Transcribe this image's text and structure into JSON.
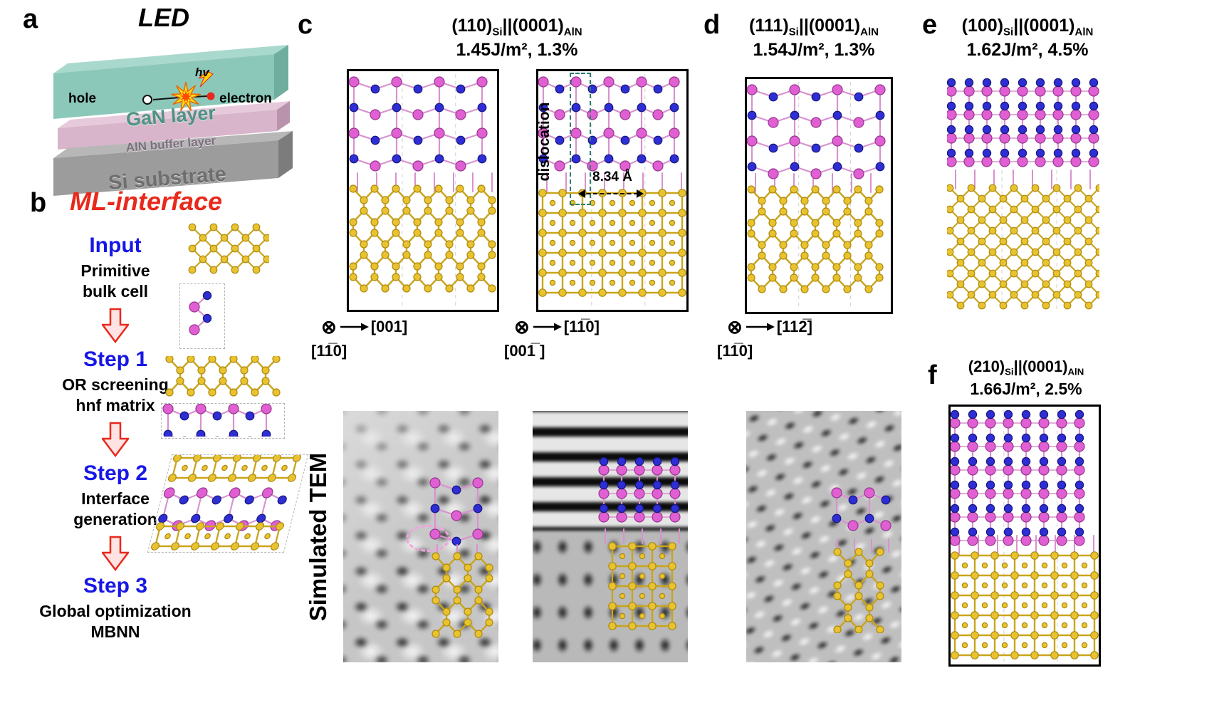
{
  "a": {
    "label": "a",
    "title": "LED",
    "hv": "hv",
    "hole": "hole",
    "electron": "electron",
    "gan_layer": "GaN layer",
    "aln_layer": "AlN buffer layer",
    "si_layer": "Si substrate"
  },
  "b": {
    "label": "b",
    "title": "ML-interface",
    "steps": [
      {
        "heading": "Input",
        "lines": [
          "Primitive",
          "bulk cell"
        ]
      },
      {
        "heading": "Step 1",
        "lines": [
          "OR screening",
          "hnf matrix"
        ]
      },
      {
        "heading": "Step 2",
        "lines": [
          "Interface",
          "generation"
        ]
      },
      {
        "heading": "Step 3",
        "lines": [
          "Global optimization",
          "MBNN"
        ]
      }
    ]
  },
  "c": {
    "label": "c",
    "title": {
      "plane_si": "(110)",
      "sub_si": "Si",
      "sep": "||",
      "plane_aln": "(0001)",
      "sub_aln": "AlN"
    },
    "energy": "1.45J/m², 1.3%",
    "dislocation": "dislocation",
    "distance": "8.34 Å",
    "axis1": {
      "symbol": "⊗",
      "dir": "[001]",
      "into": "[11̅0]"
    },
    "axis2": {
      "symbol": "⊗",
      "dir": "[11̅0]",
      "into": "[001̅ ]"
    }
  },
  "d": {
    "label": "d",
    "title": {
      "plane_si": "(111)",
      "sub_si": "Si",
      "sep": "||",
      "plane_aln": "(0001)",
      "sub_aln": "AlN"
    },
    "energy": "1.54J/m², 1.3%",
    "axis": {
      "symbol": "⊗",
      "dir": "[112̅]",
      "into": "[11̅0]"
    }
  },
  "e": {
    "label": "e",
    "title": {
      "plane_si": "(100)",
      "sub_si": "Si",
      "sep": "||",
      "plane_aln": "(0001)",
      "sub_aln": "AlN"
    },
    "energy": "1.62J/m², 4.5%"
  },
  "f": {
    "label": "f",
    "title": {
      "plane_si": "(210)",
      "sub_si": "Si",
      "sep": "||",
      "plane_aln": "(0001)",
      "sub_aln": "AlN"
    },
    "energy": "1.66J/m², 2.5%"
  },
  "tem": {
    "label": "Simulated TEM"
  }
}
